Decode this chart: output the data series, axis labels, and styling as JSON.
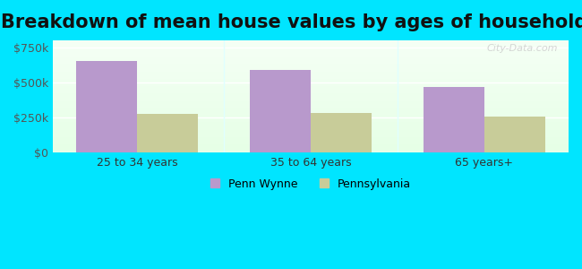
{
  "title": "Breakdown of mean house values by ages of householders",
  "categories": [
    "25 to 34 years",
    "35 to 64 years",
    "65 years+"
  ],
  "penn_wynne_values": [
    650000,
    590000,
    470000
  ],
  "pennsylvania_values": [
    275000,
    285000,
    255000
  ],
  "ylim": [
    0,
    800000
  ],
  "yticks": [
    0,
    250000,
    500000,
    750000
  ],
  "ytick_labels": [
    "$0",
    "$250k",
    "$500k",
    "$750k"
  ],
  "bar_color_penn": "#b899cc",
  "bar_color_pa": "#c8cc99",
  "background_outer": "#00e5ff",
  "background_inner": "#edfff0",
  "title_fontsize": 15,
  "legend_labels": [
    "Penn Wynne",
    "Pennsylvania"
  ],
  "bar_width": 0.35,
  "watermark": "City-Data.com"
}
